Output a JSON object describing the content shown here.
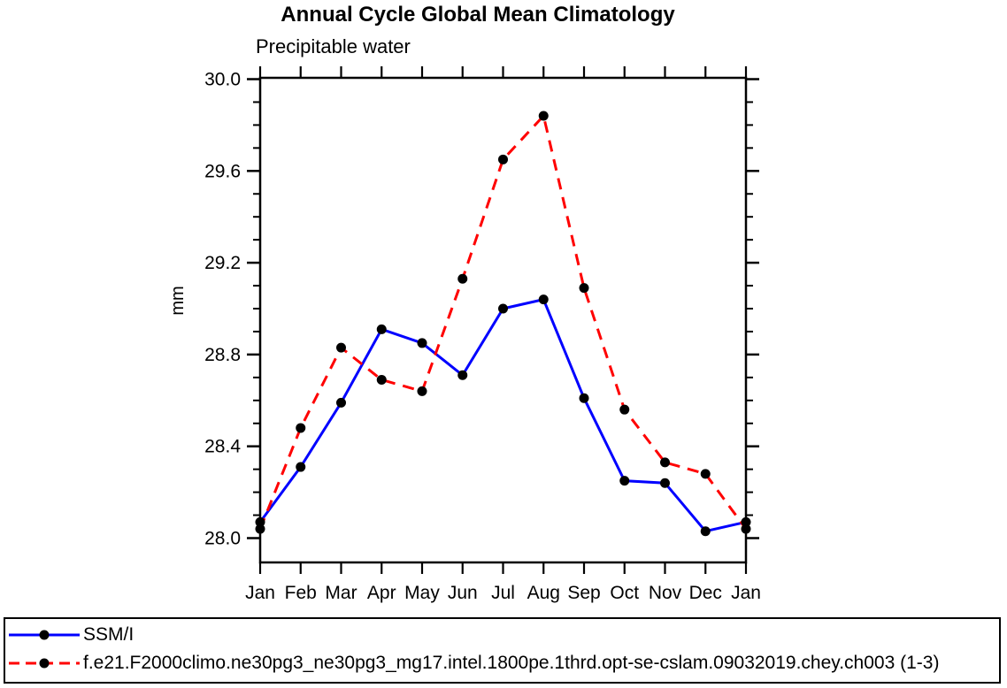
{
  "chart_data": {
    "type": "line",
    "title": "Annual Cycle Global Mean Climatology",
    "subtitle": "Precipitable water",
    "ylabel": "mm",
    "xlabel": "",
    "x_categories": [
      "Jan",
      "Feb",
      "Mar",
      "Apr",
      "May",
      "Jun",
      "Jul",
      "Aug",
      "Sep",
      "Oct",
      "Nov",
      "Dec",
      "Jan"
    ],
    "y_ticks": [
      28.0,
      28.4,
      28.8,
      29.2,
      29.6,
      30.0
    ],
    "y_tick_labels": [
      "28.0",
      "28.4",
      "28.8",
      "29.2",
      "29.6",
      "30.0"
    ],
    "y_minor_step": 0.1,
    "ylim": [
      27.89,
      30.0
    ],
    "grid": false,
    "axis_color": "#000000",
    "marker_shape": "filled-circle",
    "legend_position": "bottom-box",
    "series": [
      {
        "name": "SSM/I",
        "color": "#0000ff",
        "line_style": "solid",
        "marker_color": "#000000",
        "values": [
          28.07,
          28.31,
          28.59,
          28.91,
          28.85,
          28.71,
          29.0,
          29.04,
          28.61,
          28.25,
          28.24,
          28.03,
          28.07
        ]
      },
      {
        "name": "f.e21.F2000climo.ne30pg3_ne30pg3_mg17.intel.1800pe.1thrd.opt-se-cslam.09032019.chey.ch003 (1-3)",
        "color": "#ff0000",
        "line_style": "dashed",
        "marker_color": "#000000",
        "values": [
          28.04,
          28.48,
          28.83,
          28.69,
          28.64,
          29.13,
          29.65,
          29.84,
          29.09,
          28.56,
          28.33,
          28.28,
          28.04
        ]
      }
    ]
  }
}
